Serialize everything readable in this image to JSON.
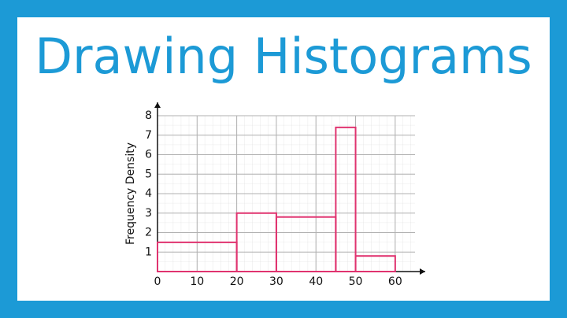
{
  "chart_data": {
    "type": "histogram",
    "title": "Drawing Histograms",
    "y_label": "Frequency Density",
    "bins": [
      0,
      20,
      30,
      45,
      50,
      60
    ],
    "values": [
      1.5,
      3,
      2.8,
      7.4,
      0.8
    ],
    "color": "#e0336f",
    "xlim": [
      0,
      65
    ],
    "ylim": [
      0,
      8
    ],
    "xticks": [
      0,
      10,
      20,
      30,
      40,
      50,
      60
    ],
    "yticks": [
      1,
      2,
      3,
      4,
      5,
      6,
      7,
      8
    ],
    "grid": true
  }
}
